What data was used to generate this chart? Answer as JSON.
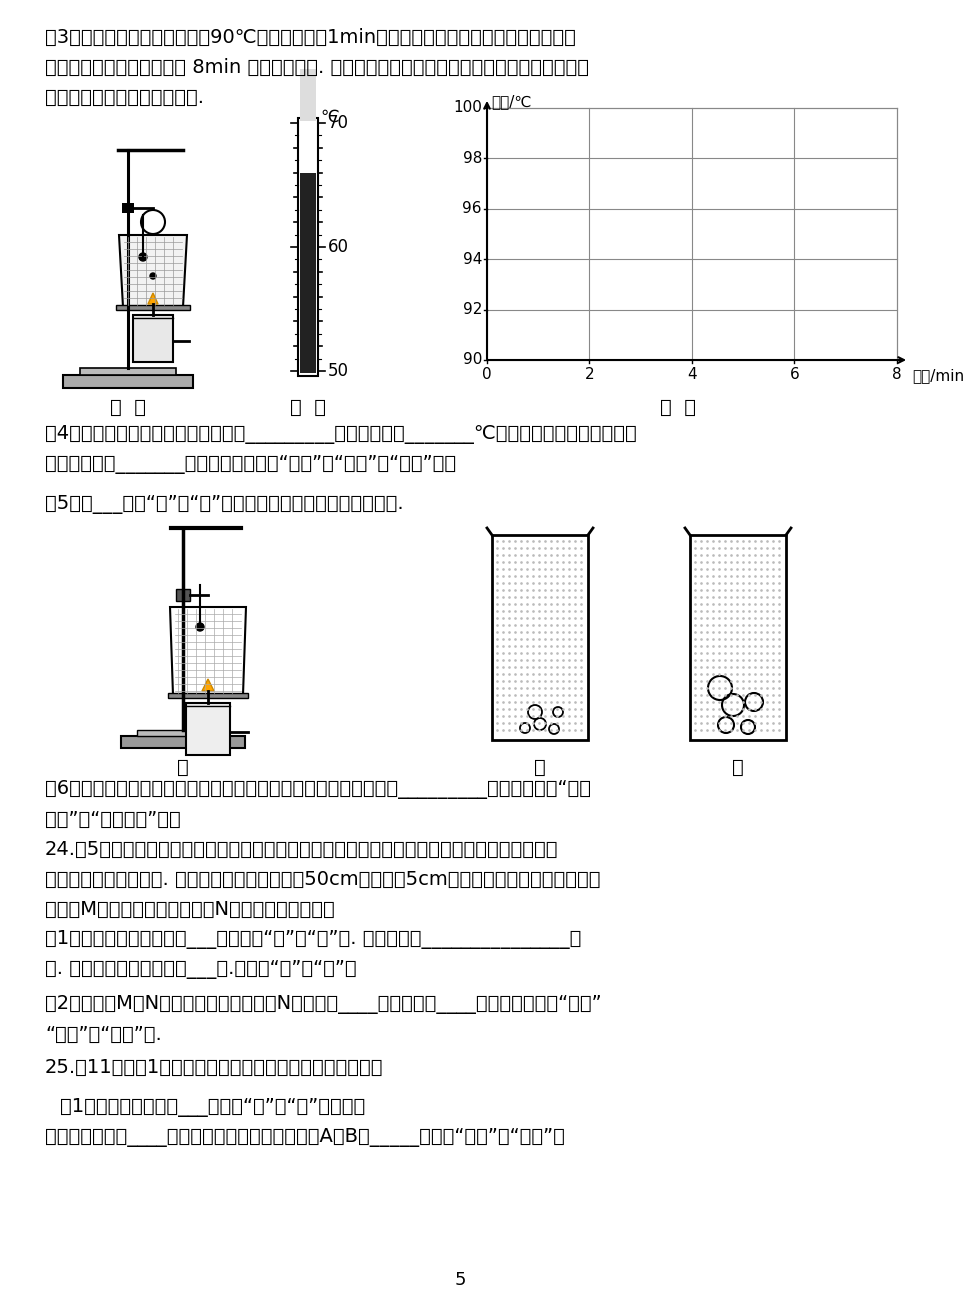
{
  "bg_color": "#ffffff",
  "para3_line1": "（3）点燃酒精灯，待水温升至90℃时，小亮同学1min读出一次温度计示数，小欢同学及时记",
  "para3_line2": "录在以下表格内，如此持续 8min 后停止了读数. 请根据表格中数据，在图丙的坐标系中画出水在永",
  "para3_line3": "腾前后温度随时间变化的图线.",
  "para4_line1": "（4）由图象可知：水永腾时的特点是_________，水的永点为_______℃，出现这一结果的原因可能",
  "para4_line2": "是该处大气压_______标准大气压（选填“大于”、“等于”或“小于”）。",
  "para5": "（5）图___（填“乙”或“丙”）能反映水永腾前产生气泡的情形.",
  "para6_line1": "（6）通过学习，小燕终于明白妈妈用炉火烖汤时，在汤永腾后总是_________的道理（选填“保持",
  "para6_line2": "大火”或“调为小火”）。",
  "para24_line1": "24.（5分）大约两千四百年前，我国的学者墨翣和它的学生做了世界上第一个小孔成像的实验，",
  "para24_line2": "解释了小孔成像的原理. 小光同学将两个长度均为50cm，直径为5cm的直筒套在一起，做成如图的",
  "para24_line3": "仪器（M筒的直径稍大，可以在N筒上并能前后移动）",
  "para24_1_line1": "（1）小孔成的像是倒立的___像（选填“实”或“虚”）. 可以用光的_______________解",
  "para24_1_line2": "释. 所成的像与小孔的形状___关.（选填“有”或“无”）",
  "para24_2_line1": "（2）若直筒M、N位置不动，让物体远离N筒，像距____，像的大小____（以上两空选填“变大”",
  "para24_2_line2": "“不变”或“变小”）.",
  "para25_line1": "25.（11分）图1是某同学探究平面镜成像特点的实验装置。",
  "para25_1_line1": "（1）实验中应选择较___（选填“厚”或“薄”）的茶色",
  "para25_1_line2": "玻璃板，并将其____放置在水平桌面上，并且棋子A和B要_____（选填“相同”或“不同”）",
  "page_num": "5"
}
